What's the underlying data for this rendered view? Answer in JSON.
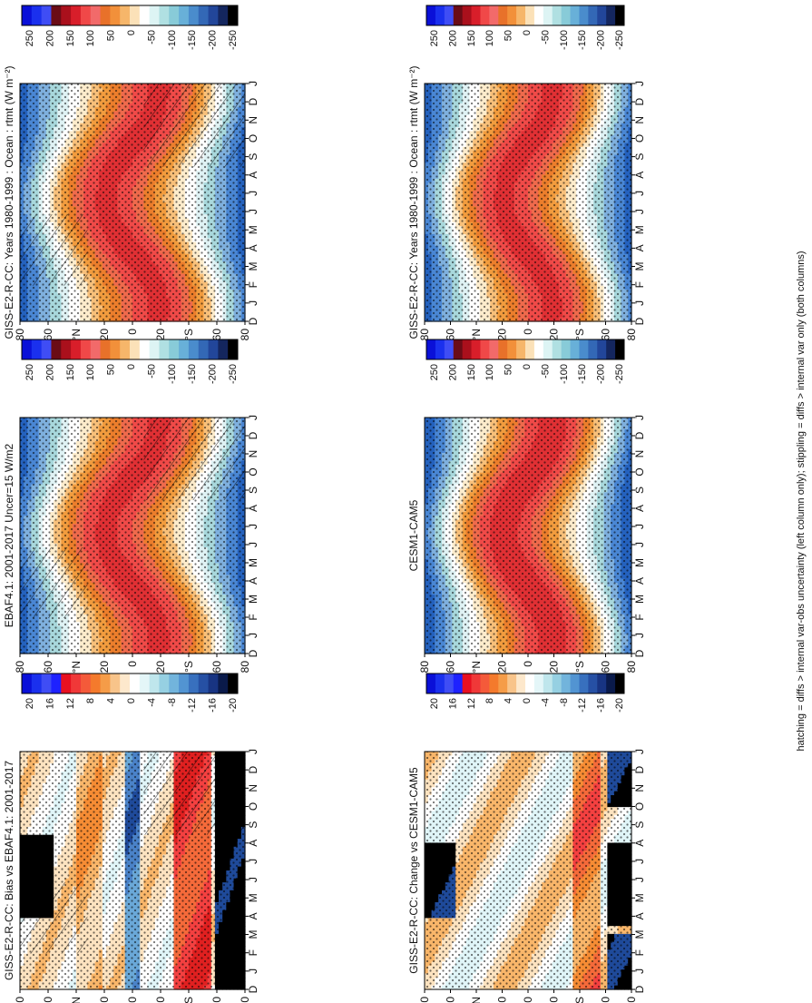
{
  "figure": {
    "caption": "hatching = diffs > internal var-obs uncertainty (left column only); stippling = diffs > internal var only (both columns)",
    "colors": {
      "diverging": [
        "#1010d8",
        "#1a3cf0",
        "#2e6bff",
        "#4a9cff",
        "#78c4ff",
        "#b7e6ff",
        "#e8f8ff",
        "#ffffff",
        "#fff3d6",
        "#ffd9a0",
        "#ffb25c",
        "#f58a2e",
        "#ef5a2a",
        "#e02020",
        "#b8101a",
        "#8a0810"
      ],
      "panel_rtmt": [
        "#1f3b8a",
        "#2d63c4",
        "#5b97dc",
        "#8cbbe4",
        "#a6d6d8",
        "#d6eef4",
        "#ffffff",
        "#fde7c4",
        "#f7b970",
        "#f08f36",
        "#e9702a",
        "#f05a4e",
        "#e84040",
        "#c9182a",
        "#a30e1e",
        "#7a0010"
      ]
    },
    "months": [
      "D",
      "J",
      "F",
      "M",
      "A",
      "M",
      "J",
      "J",
      "A",
      "S",
      "O",
      "N",
      "D",
      "J"
    ],
    "lat_labels": [
      "80",
      "60",
      "°N",
      "20",
      "0",
      "20",
      "°S",
      "60",
      "80"
    ],
    "colorbar_rtmt": [
      "250",
      "200",
      "150",
      "100",
      "50",
      "0",
      "-50",
      "-100",
      "-150",
      "-200",
      "-250"
    ],
    "colorbar_diff": [
      "20",
      "16",
      "12",
      "8",
      "4",
      "0",
      "-4",
      "-8",
      "-12",
      "-16",
      "-20"
    ]
  },
  "chart_data": [
    {
      "type": "heatmap",
      "title": "GISS-E2-R-CC: Years 1980-1999 : Ocean : rtmt (W m⁻²)",
      "x": [
        "D",
        "J",
        "F",
        "M",
        "A",
        "M",
        "J",
        "J",
        "A",
        "S",
        "O",
        "N",
        "D",
        "J"
      ],
      "y": [
        "80N",
        "60N",
        "20N",
        "0",
        "20S",
        "60S",
        "80S"
      ],
      "colorbar": [
        250,
        200,
        150,
        100,
        50,
        0,
        -50,
        -100,
        -150,
        -200,
        -250
      ]
    },
    {
      "type": "heatmap",
      "title": "EBAF4.1: 2001-2017 Uncer=15 W/m2",
      "x": [
        "D",
        "J",
        "F",
        "M",
        "A",
        "M",
        "J",
        "J",
        "A",
        "S",
        "O",
        "N",
        "D",
        "J"
      ],
      "y": [
        "80N",
        "60N",
        "20N",
        "0",
        "20S",
        "60S",
        "80S"
      ],
      "colorbar": [
        250,
        200,
        150,
        100,
        50,
        0,
        -50,
        -100,
        -150,
        -200,
        -250
      ]
    },
    {
      "type": "heatmap",
      "title": "GISS-E2-R-CC: Bias vs EBAF4.1: 2001-2017",
      "x": [
        "D",
        "J",
        "F",
        "M",
        "A",
        "M",
        "J",
        "J",
        "A",
        "S",
        "O",
        "N",
        "D",
        "J"
      ],
      "y": [
        "80N",
        "60N",
        "20N",
        "0",
        "20S",
        "60S",
        "80S"
      ],
      "colorbar": [
        20,
        16,
        12,
        8,
        4,
        0,
        -4,
        -8,
        -12,
        -16,
        -20
      ]
    },
    {
      "type": "heatmap",
      "title": "GISS-E2-R-CC: Years 1980-1999 : Ocean : rtmt (W m⁻²)",
      "x": [
        "D",
        "J",
        "F",
        "M",
        "A",
        "M",
        "J",
        "J",
        "A",
        "S",
        "O",
        "N",
        "D",
        "J"
      ],
      "y": [
        "80N",
        "60N",
        "20N",
        "0",
        "20S",
        "60S",
        "80S"
      ],
      "colorbar": [
        250,
        200,
        150,
        100,
        50,
        0,
        -50,
        -100,
        -150,
        -200,
        -250
      ]
    },
    {
      "type": "heatmap",
      "title": "CESM1-CAM5",
      "x": [
        "D",
        "J",
        "F",
        "M",
        "A",
        "M",
        "J",
        "J",
        "A",
        "S",
        "O",
        "N",
        "D",
        "J"
      ],
      "y": [
        "80N",
        "60N",
        "20N",
        "0",
        "20S",
        "60S",
        "80S"
      ],
      "colorbar": [
        250,
        200,
        150,
        100,
        50,
        0,
        -50,
        -100,
        -150,
        -200,
        -250
      ]
    },
    {
      "type": "heatmap",
      "title": "GISS-E2-R-CC: Change vs CESM1-CAM5",
      "x": [
        "D",
        "J",
        "F",
        "M",
        "A",
        "M",
        "J",
        "J",
        "A",
        "S",
        "O",
        "N",
        "D",
        "J"
      ],
      "y": [
        "80N",
        "60N",
        "20N",
        "0",
        "20S",
        "60S",
        "80S"
      ],
      "colorbar": [
        20,
        16,
        12,
        8,
        4,
        0,
        -4,
        -8,
        -12,
        -16,
        -20
      ]
    }
  ]
}
